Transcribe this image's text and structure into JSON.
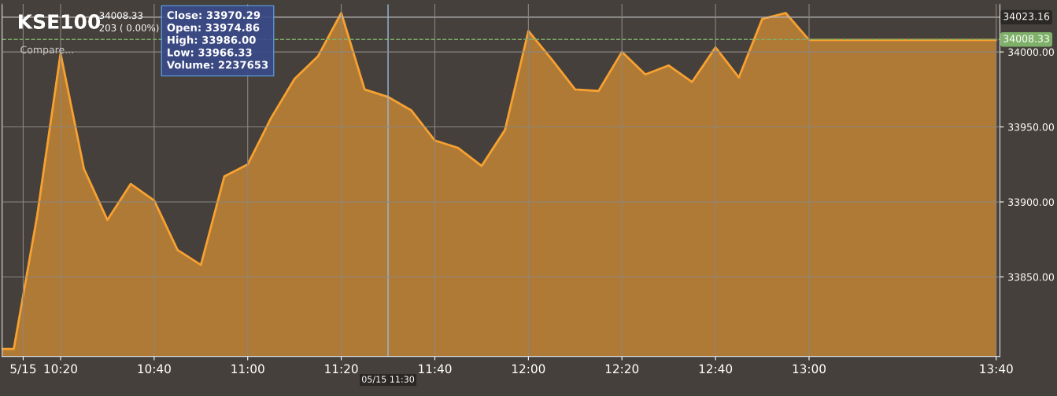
{
  "chart_data": {
    "type": "area",
    "title": "KSE100",
    "annotations": [
      "34008.33",
      "203 ( 0.00%)",
      "Compare...",
      "Close: 33970.29",
      "Open: 33974.86",
      "High: 33986.00",
      "Low: 33966.33",
      "Volume: 2237653"
    ],
    "x": [
      10.125,
      10.1667,
      10.25,
      10.3333,
      10.4167,
      10.5,
      10.5833,
      10.6667,
      10.75,
      10.8333,
      10.9167,
      11.0,
      11.0833,
      11.1667,
      11.25,
      11.3333,
      11.4167,
      11.5,
      11.5833,
      11.6667,
      11.75,
      11.8333,
      11.9167,
      12.0,
      12.0833,
      12.1667,
      12.25,
      12.3333,
      12.4167,
      12.5,
      12.5833,
      12.6667,
      12.75,
      12.8333,
      12.9167,
      13.0,
      13.6667
    ],
    "series": [
      {
        "color": "#f7a131",
        "values": [
          33802,
          33802,
          33891,
          33999,
          33922,
          33888,
          33912,
          33901,
          33868,
          33858,
          33917,
          33925,
          33956,
          33982,
          33997,
          34026,
          33975,
          33970,
          33961,
          33941,
          33936,
          33924,
          33948,
          34014,
          33995,
          33975,
          33974,
          34000,
          33985,
          33991,
          33980,
          34003,
          33983,
          34022,
          34026,
          34008,
          34008
        ]
      }
    ],
    "xlim": [
      10.125,
      13.68
    ],
    "xticks": [
      {
        "value": 10.2,
        "label": "5/15"
      },
      {
        "value": 10.3333,
        "label": "10:20"
      },
      {
        "value": 10.6667,
        "label": "10:40"
      },
      {
        "value": 11.0,
        "label": "11:00"
      },
      {
        "value": 11.3333,
        "label": "11:20"
      },
      {
        "value": 11.6667,
        "label": "11:40"
      },
      {
        "value": 12.0,
        "label": "12:00"
      },
      {
        "value": 12.3333,
        "label": "12:20"
      },
      {
        "value": 12.6667,
        "label": "12:40"
      },
      {
        "value": 13.0,
        "label": "13:00"
      },
      {
        "value": 13.6667,
        "label": "13:40"
      }
    ],
    "ylim": [
      33797,
      34032
    ],
    "yticks": [
      {
        "value": 33850,
        "label": "33850.00"
      },
      {
        "value": 33900,
        "label": "33900.00"
      },
      {
        "value": 33950,
        "label": "33950.00"
      },
      {
        "value": 34000,
        "label": "34000.00"
      }
    ],
    "ref_lines": [
      {
        "axis": "y",
        "value": 34008.33,
        "label": "34008.33",
        "color": "#7fb069",
        "line_style": "dashed"
      },
      {
        "axis": "y",
        "value": 34023.16,
        "label": "34023.16",
        "color": "#bbbbbb",
        "line_style": "solid"
      },
      {
        "axis": "x",
        "value": 11.5,
        "label": "05/15 11:30",
        "color": "#9ab8d8",
        "line_style": "solid"
      }
    ],
    "grid": true
  }
}
